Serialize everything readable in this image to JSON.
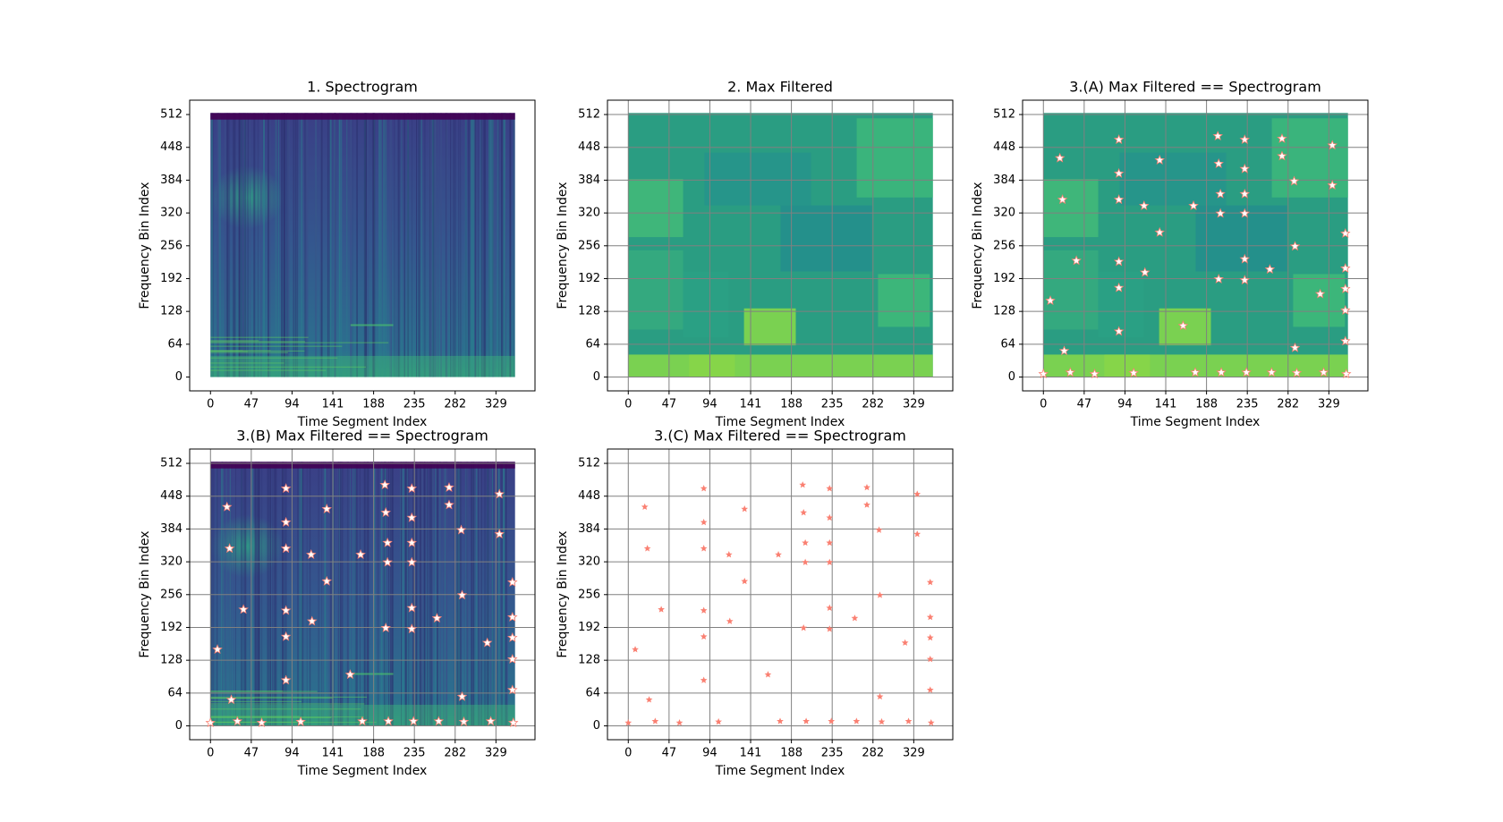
{
  "chart_data": [
    {
      "type": "image",
      "title": "1. Spectrogram",
      "x_label": "Time Segment Index",
      "y_label": "Frequency Bin Index",
      "background": "spectrogram",
      "colormap": "viridis",
      "extent": [
        0,
        351,
        0,
        515
      ],
      "xlim": [
        -24,
        374
      ],
      "ylim": [
        -27,
        540
      ],
      "xticks": [
        0,
        47,
        94,
        141,
        188,
        235,
        282,
        329
      ],
      "yticks": [
        0,
        64,
        128,
        192,
        256,
        320,
        384,
        448,
        512
      ],
      "grid": false
    },
    {
      "type": "image",
      "title": "2. Max Filtered",
      "x_label": "Time Segment Index",
      "y_label": "Frequency Bin Index",
      "background": "max_filtered",
      "colormap": "viridis",
      "extent": [
        0,
        351,
        0,
        515
      ],
      "xlim": [
        -24,
        374
      ],
      "ylim": [
        -27,
        540
      ],
      "xticks": [
        0,
        47,
        94,
        141,
        188,
        235,
        282,
        329
      ],
      "yticks": [
        0,
        64,
        128,
        192,
        256,
        320,
        384,
        448,
        512
      ],
      "grid": true
    },
    {
      "type": "scatter",
      "title": "3.(A) Max Filtered == Spectrogram",
      "x_label": "Time Segment Index",
      "y_label": "Frequency Bin Index",
      "background": "max_filtered",
      "colormap": "viridis",
      "extent": [
        0,
        351,
        0,
        515
      ],
      "xlim": [
        -24,
        374
      ],
      "ylim": [
        -27,
        540
      ],
      "xticks": [
        0,
        47,
        94,
        141,
        188,
        235,
        282,
        329
      ],
      "yticks": [
        0,
        64,
        128,
        192,
        256,
        320,
        384,
        448,
        512
      ],
      "grid": true,
      "marker_fill": "#ffffff",
      "marker_edge": "#fa8072",
      "x": [
        0,
        8,
        19,
        22,
        24,
        31,
        38,
        59,
        87,
        87,
        87,
        87,
        87,
        87,
        104,
        116,
        117,
        134,
        134,
        161,
        175,
        173,
        201,
        202,
        204,
        204,
        205,
        202,
        232,
        232,
        232,
        232,
        232,
        232,
        234,
        261,
        263,
        275,
        275,
        289,
        290,
        290,
        292,
        319,
        323,
        333,
        333,
        348,
        348,
        348,
        348,
        348,
        349
      ],
      "y": [
        6,
        149,
        427,
        346,
        51,
        9,
        227,
        6,
        463,
        397,
        346,
        225,
        174,
        89,
        8,
        334,
        204,
        423,
        282,
        100,
        9,
        334,
        470,
        416,
        357,
        319,
        9,
        191,
        463,
        406,
        357,
        319,
        230,
        189,
        9,
        210,
        9,
        465,
        431,
        382,
        255,
        57,
        8,
        162,
        9,
        452,
        374,
        280,
        212,
        172,
        130,
        70,
        6
      ]
    },
    {
      "type": "scatter",
      "title": "3.(B) Max Filtered == Spectrogram",
      "x_label": "Time Segment Index",
      "y_label": "Frequency Bin Index",
      "background": "spectrogram",
      "colormap": "viridis",
      "extent": [
        0,
        351,
        0,
        515
      ],
      "xlim": [
        -24,
        374
      ],
      "ylim": [
        -27,
        540
      ],
      "xticks": [
        0,
        47,
        94,
        141,
        188,
        235,
        282,
        329
      ],
      "yticks": [
        0,
        64,
        128,
        192,
        256,
        320,
        384,
        448,
        512
      ],
      "grid": true,
      "marker_fill": "#ffffff",
      "marker_edge": "#fa8072",
      "x": [
        0,
        8,
        19,
        22,
        24,
        31,
        38,
        59,
        87,
        87,
        87,
        87,
        87,
        87,
        104,
        116,
        117,
        134,
        134,
        161,
        175,
        173,
        201,
        202,
        204,
        204,
        205,
        202,
        232,
        232,
        232,
        232,
        232,
        232,
        234,
        261,
        263,
        275,
        275,
        289,
        290,
        290,
        292,
        319,
        323,
        333,
        333,
        348,
        348,
        348,
        348,
        348,
        349
      ],
      "y": [
        6,
        149,
        427,
        346,
        51,
        9,
        227,
        6,
        463,
        397,
        346,
        225,
        174,
        89,
        8,
        334,
        204,
        423,
        282,
        100,
        9,
        334,
        470,
        416,
        357,
        319,
        9,
        191,
        463,
        406,
        357,
        319,
        230,
        189,
        9,
        210,
        9,
        465,
        431,
        382,
        255,
        57,
        8,
        162,
        9,
        452,
        374,
        280,
        212,
        172,
        130,
        70,
        6
      ]
    },
    {
      "type": "scatter",
      "title": "3.(C) Max Filtered == Spectrogram",
      "x_label": "Time Segment Index",
      "y_label": "Frequency Bin Index",
      "xlim": [
        -24,
        374
      ],
      "ylim": [
        -27,
        540
      ],
      "xticks": [
        0,
        47,
        94,
        141,
        188,
        235,
        282,
        329
      ],
      "yticks": [
        0,
        64,
        128,
        192,
        256,
        320,
        384,
        448,
        512
      ],
      "grid": true,
      "marker_fill": "#fa8072",
      "marker_edge": "#fa8072",
      "x": [
        0,
        8,
        19,
        22,
        24,
        31,
        38,
        59,
        87,
        87,
        87,
        87,
        87,
        87,
        104,
        116,
        117,
        134,
        134,
        161,
        175,
        173,
        201,
        202,
        204,
        204,
        205,
        202,
        232,
        232,
        232,
        232,
        232,
        232,
        234,
        261,
        263,
        275,
        275,
        289,
        290,
        290,
        292,
        319,
        323,
        333,
        333,
        348,
        348,
        348,
        348,
        348,
        349
      ],
      "y": [
        6,
        149,
        427,
        346,
        51,
        9,
        227,
        6,
        463,
        397,
        346,
        225,
        174,
        89,
        8,
        334,
        204,
        423,
        282,
        100,
        9,
        334,
        470,
        416,
        357,
        319,
        9,
        191,
        463,
        406,
        357,
        319,
        230,
        189,
        9,
        210,
        9,
        465,
        431,
        382,
        255,
        57,
        8,
        162,
        9,
        452,
        374,
        280,
        212,
        172,
        130,
        70,
        6
      ]
    }
  ]
}
